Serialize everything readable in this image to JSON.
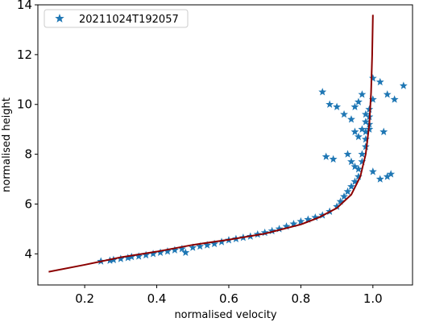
{
  "chart_data": {
    "type": "scatter",
    "xlabel": "normalised velocity",
    "ylabel": "normalised height",
    "xlim": [
      0.07,
      1.11
    ],
    "ylim": [
      2.75,
      14.0
    ],
    "xticks": [
      0.2,
      0.4,
      0.6,
      0.8,
      1.0
    ],
    "yticks": [
      4,
      6,
      8,
      10,
      12,
      14
    ],
    "xtick_labels": [
      "0.2",
      "0.4",
      "0.6",
      "0.8",
      "1.0"
    ],
    "ytick_labels": [
      "4",
      "6",
      "8",
      "10",
      "12",
      "14"
    ],
    "grid": false,
    "legend_position": "upper-left",
    "series": [
      {
        "name": "20211024T192057",
        "kind": "scatter",
        "marker": "star",
        "color": "#1f77b4",
        "points": [
          [
            0.245,
            3.7
          ],
          [
            0.27,
            3.73
          ],
          [
            0.28,
            3.76
          ],
          [
            0.3,
            3.8
          ],
          [
            0.32,
            3.84
          ],
          [
            0.33,
            3.88
          ],
          [
            0.35,
            3.9
          ],
          [
            0.37,
            3.95
          ],
          [
            0.39,
            4.0
          ],
          [
            0.41,
            4.05
          ],
          [
            0.43,
            4.1
          ],
          [
            0.45,
            4.15
          ],
          [
            0.47,
            4.2
          ],
          [
            0.48,
            4.05
          ],
          [
            0.5,
            4.25
          ],
          [
            0.52,
            4.3
          ],
          [
            0.54,
            4.35
          ],
          [
            0.56,
            4.4
          ],
          [
            0.58,
            4.48
          ],
          [
            0.6,
            4.55
          ],
          [
            0.62,
            4.6
          ],
          [
            0.64,
            4.65
          ],
          [
            0.66,
            4.7
          ],
          [
            0.68,
            4.78
          ],
          [
            0.7,
            4.85
          ],
          [
            0.72,
            4.92
          ],
          [
            0.74,
            5.0
          ],
          [
            0.76,
            5.1
          ],
          [
            0.78,
            5.2
          ],
          [
            0.8,
            5.3
          ],
          [
            0.82,
            5.38
          ],
          [
            0.84,
            5.46
          ],
          [
            0.86,
            5.55
          ],
          [
            0.88,
            5.7
          ],
          [
            0.9,
            5.9
          ],
          [
            0.91,
            6.1
          ],
          [
            0.92,
            6.3
          ],
          [
            0.93,
            6.5
          ],
          [
            0.94,
            6.7
          ],
          [
            0.95,
            6.9
          ],
          [
            0.96,
            7.1
          ],
          [
            0.96,
            7.4
          ],
          [
            0.97,
            7.7
          ],
          [
            0.97,
            8.0
          ],
          [
            0.98,
            8.3
          ],
          [
            0.98,
            8.6
          ],
          [
            0.98,
            8.9
          ],
          [
            0.99,
            9.2
          ],
          [
            0.99,
            9.5
          ],
          [
            0.99,
            9.8
          ],
          [
            0.96,
            10.1
          ],
          [
            0.97,
            10.4
          ],
          [
            0.98,
            9.6
          ],
          [
            0.95,
            9.9
          ],
          [
            1.0,
            10.2
          ],
          [
            0.86,
            10.5
          ],
          [
            0.88,
            10.0
          ],
          [
            0.9,
            9.9
          ],
          [
            0.92,
            9.6
          ],
          [
            0.94,
            9.4
          ],
          [
            1.0,
            11.05
          ],
          [
            1.02,
            10.9
          ],
          [
            1.04,
            10.4
          ],
          [
            1.06,
            10.2
          ],
          [
            1.085,
            10.75
          ],
          [
            1.05,
            7.2
          ],
          [
            1.04,
            7.1
          ],
          [
            1.02,
            7.0
          ],
          [
            1.0,
            7.3
          ],
          [
            1.03,
            8.9
          ],
          [
            0.87,
            7.9
          ],
          [
            0.89,
            7.8
          ],
          [
            0.93,
            8.0
          ],
          [
            0.94,
            7.7
          ],
          [
            0.95,
            7.5
          ],
          [
            0.95,
            8.9
          ],
          [
            0.96,
            8.7
          ],
          [
            0.97,
            9.0
          ],
          [
            0.98,
            9.3
          ],
          [
            0.99,
            9.0
          ]
        ]
      },
      {
        "kind": "line",
        "color": "#8b0000",
        "points": [
          [
            0.1,
            3.28
          ],
          [
            0.2,
            3.56
          ],
          [
            0.3,
            3.86
          ],
          [
            0.4,
            4.09
          ],
          [
            0.5,
            4.36
          ],
          [
            0.6,
            4.57
          ],
          [
            0.7,
            4.81
          ],
          [
            0.8,
            5.18
          ],
          [
            0.85,
            5.46
          ],
          [
            0.9,
            5.84
          ],
          [
            0.94,
            6.38
          ],
          [
            0.965,
            7.1
          ],
          [
            0.98,
            8.0
          ],
          [
            0.99,
            9.2
          ],
          [
            0.995,
            10.5
          ],
          [
            0.998,
            12.0
          ],
          [
            1.0,
            13.6
          ]
        ]
      }
    ]
  }
}
